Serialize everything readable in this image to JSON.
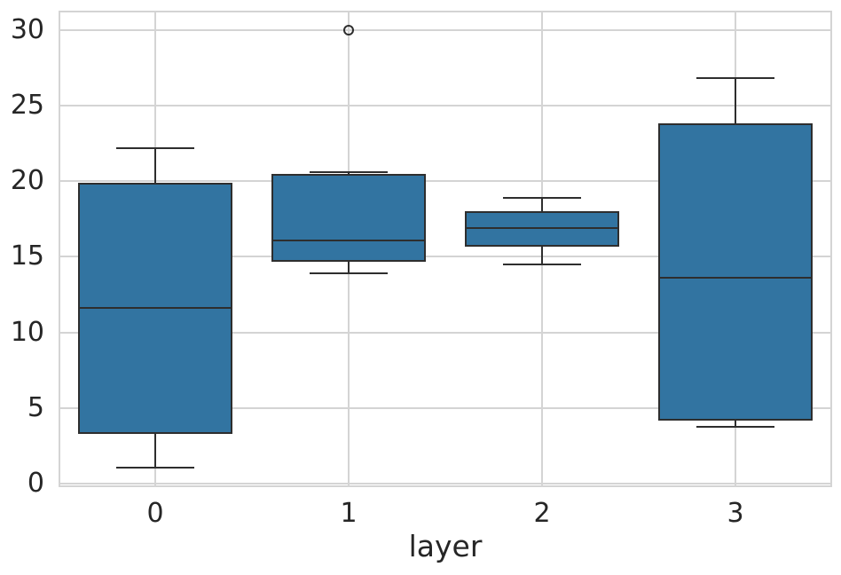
{
  "chart_data": {
    "type": "box",
    "xlabel": "layer",
    "categories": [
      "0",
      "1",
      "2",
      "3"
    ],
    "y_ticks": [
      0,
      5,
      10,
      15,
      20,
      25,
      30
    ],
    "ylim": [
      -0.21,
      31.26
    ],
    "grid": "both",
    "box_width_ratio": 0.8,
    "cap_width_ratio": 0.5,
    "boxes": [
      {
        "category": "0",
        "whisker_low": 1.1,
        "q1": 3.3,
        "median": 11.6,
        "q3": 19.9,
        "whisker_high": 22.2,
        "outliers": []
      },
      {
        "category": "1",
        "whisker_low": 13.9,
        "q1": 14.7,
        "median": 16.1,
        "q3": 20.5,
        "whisker_high": 20.6,
        "outliers": [
          30
        ]
      },
      {
        "category": "2",
        "whisker_low": 14.5,
        "q1": 15.7,
        "median": 16.9,
        "q3": 18.0,
        "whisker_high": 18.9,
        "outliers": []
      },
      {
        "category": "3",
        "whisker_low": 3.8,
        "q1": 4.2,
        "median": 13.6,
        "q3": 23.8,
        "whisker_high": 26.8,
        "outliers": []
      }
    ],
    "colors": {
      "box_fill": "#3274a1",
      "box_edge": "#2e2e2e",
      "grid": "#d4d4d4",
      "tick_label": "#262626",
      "background": "#ffffff"
    }
  }
}
